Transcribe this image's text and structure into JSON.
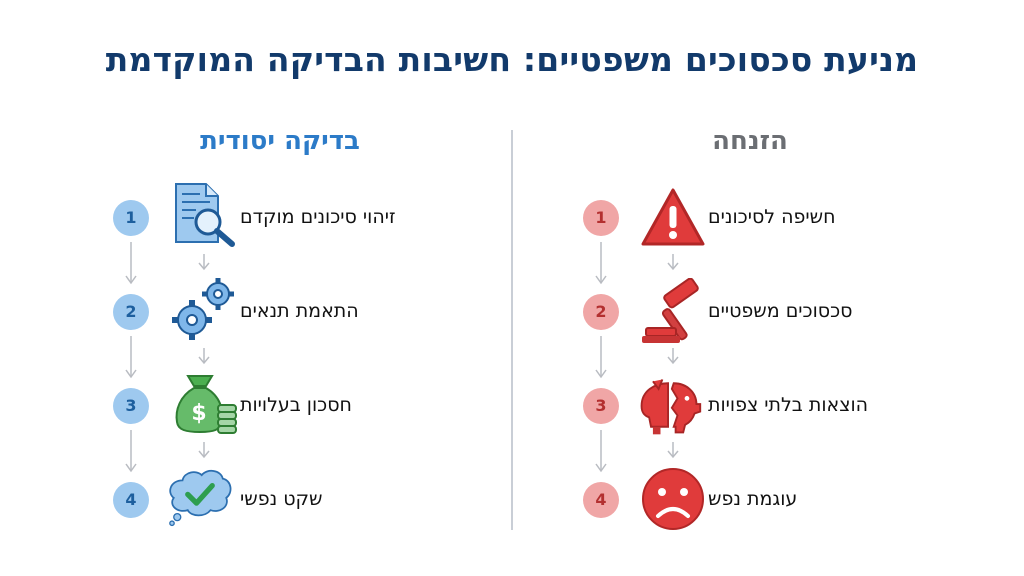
{
  "title": "מניעת סכסוכים משפטיים: חשיבות הבדיקה המוקדמת",
  "columns": {
    "right": {
      "heading": "הזנחה",
      "steps": [
        {
          "number": "1",
          "label": "חשיפה לסיכונים",
          "icon": "warning-triangle-icon"
        },
        {
          "number": "2",
          "label": "סכסוכים משפטיים",
          "icon": "gavel-icon"
        },
        {
          "number": "3",
          "label": "הוצאות בלתי צפויות",
          "icon": "broken-piggy-bank-icon"
        },
        {
          "number": "4",
          "label": "עוגמת נפש",
          "icon": "sad-face-icon"
        }
      ]
    },
    "left": {
      "heading": "בדיקה יסודית",
      "steps": [
        {
          "number": "1",
          "label": "זיהוי סיכונים מוקדם",
          "icon": "document-magnifier-icon"
        },
        {
          "number": "2",
          "label": "התאמת תנאים",
          "icon": "gears-icon"
        },
        {
          "number": "3",
          "label": "חסכון בעלויות",
          "icon": "money-bag-coins-icon"
        },
        {
          "number": "4",
          "label": "שקט נפשי",
          "icon": "thought-bubble-check-icon"
        }
      ]
    }
  },
  "colors": {
    "title": "#123a6b",
    "neglect_accent": "#e03b3b",
    "thorough_accent": "#2c7bc8",
    "money_green": "#4caf50"
  }
}
